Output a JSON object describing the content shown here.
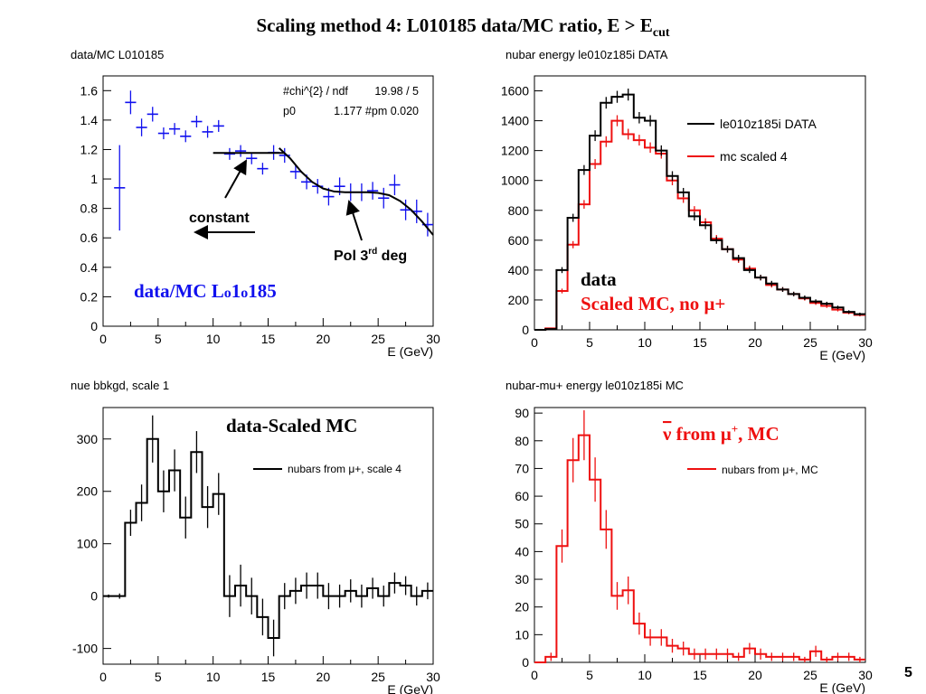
{
  "slide": {
    "title_main": "Scaling method 4: L010185 data/MC ratio, E > E",
    "title_sub": "cut",
    "page_number": "5"
  },
  "chart_data": [
    {
      "type": "scatter",
      "hist_title": "data/MC L010185",
      "xlabel": "E (GeV)",
      "ylabel": "",
      "xlim": [
        0,
        30
      ],
      "ylim": [
        0,
        1.7
      ],
      "xticks": [
        0,
        5,
        10,
        15,
        20,
        25,
        30
      ],
      "yticks": [
        0,
        0.2,
        0.4,
        0.6,
        0.8,
        1,
        1.2,
        1.4,
        1.6
      ],
      "stats": [
        {
          "name": "#chi^{2} / ndf",
          "value": "19.98 / 5"
        },
        {
          "name": "p0",
          "value": "1.177 #pm 0.020"
        }
      ],
      "series": [
        {
          "color": "#1010ee",
          "binwidth": 1,
          "x": [
            1.5,
            2.5,
            3.5,
            4.5,
            5.5,
            6.5,
            7.5,
            8.5,
            9.5,
            10.5,
            11.5,
            12.5,
            13.5,
            14.5,
            15.5,
            16.5,
            17.5,
            18.5,
            19.5,
            20.5,
            21.5,
            22.5,
            23.5,
            24.5,
            25.5,
            26.5,
            27.5,
            28.5,
            29.5
          ],
          "y": [
            0.94,
            1.52,
            1.35,
            1.44,
            1.31,
            1.34,
            1.29,
            1.39,
            1.32,
            1.36,
            1.17,
            1.19,
            1.14,
            1.07,
            1.18,
            1.16,
            1.05,
            0.98,
            0.95,
            0.88,
            0.95,
            0.91,
            0.91,
            0.92,
            0.87,
            0.96,
            0.79,
            0.78,
            0.69
          ],
          "err": [
            0.29,
            0.08,
            0.06,
            0.05,
            0.04,
            0.04,
            0.04,
            0.04,
            0.04,
            0.04,
            0.04,
            0.04,
            0.04,
            0.04,
            0.05,
            0.05,
            0.05,
            0.05,
            0.05,
            0.06,
            0.06,
            0.06,
            0.06,
            0.06,
            0.07,
            0.07,
            0.07,
            0.08,
            0.08
          ]
        }
      ],
      "fit_constant": {
        "x": [
          10,
          16.5
        ],
        "y": [
          1.177,
          1.177
        ]
      },
      "fit_poly": {
        "x": [
          16,
          17,
          18,
          19,
          20,
          21,
          22,
          23,
          24,
          25,
          26,
          27,
          28,
          29,
          30
        ],
        "y": [
          1.21,
          1.14,
          1.05,
          0.98,
          0.935,
          0.915,
          0.91,
          0.91,
          0.91,
          0.905,
          0.89,
          0.85,
          0.79,
          0.71,
          0.62
        ]
      },
      "annotations": {
        "constant": "constant",
        "pol_main": "Pol 3",
        "pol_sup": "rd",
        "pol_rest": " deg",
        "label": "data/MC L",
        "label_o": "o",
        "label_rest": "1",
        "label_o2": "o",
        "label_end": "185"
      }
    },
    {
      "type": "line",
      "hist_title": "nubar energy le010z185i DATA",
      "xlabel": "E (GeV)",
      "ylabel": "",
      "xlim": [
        0,
        30
      ],
      "ylim": [
        0,
        1700
      ],
      "xticks": [
        0,
        5,
        10,
        15,
        20,
        25,
        30
      ],
      "yticks": [
        0,
        200,
        400,
        600,
        800,
        1000,
        1200,
        1400,
        1600
      ],
      "legend": [
        {
          "name": "le010z185i DATA",
          "color": "#000000"
        },
        {
          "name": "mc scaled 4",
          "color": "#ee1010"
        }
      ],
      "series": [
        {
          "name": "le010z185i DATA",
          "color": "#000000",
          "binwidth": 1,
          "x": [
            0.5,
            1.5,
            2.5,
            3.5,
            4.5,
            5.5,
            6.5,
            7.5,
            8.5,
            9.5,
            10.5,
            11.5,
            12.5,
            13.5,
            14.5,
            15.5,
            16.5,
            17.5,
            18.5,
            19.5,
            20.5,
            21.5,
            22.5,
            23.5,
            24.5,
            25.5,
            26.5,
            27.5,
            28.5,
            29.5
          ],
          "y": [
            0,
            5,
            400,
            750,
            1070,
            1300,
            1520,
            1560,
            1575,
            1420,
            1400,
            1200,
            1030,
            920,
            760,
            700,
            600,
            540,
            480,
            400,
            350,
            310,
            270,
            240,
            215,
            190,
            175,
            150,
            120,
            105
          ],
          "err": [
            0,
            4,
            20,
            27,
            33,
            36,
            39,
            40,
            40,
            38,
            37,
            35,
            32,
            30,
            28,
            26,
            24,
            23,
            22,
            20,
            19,
            18,
            16,
            15,
            15,
            14,
            13,
            12,
            11,
            10
          ]
        },
        {
          "name": "mc scaled 4",
          "color": "#ee1010",
          "binwidth": 1,
          "x": [
            0.5,
            1.5,
            2.5,
            3.5,
            4.5,
            5.5,
            6.5,
            7.5,
            8.5,
            9.5,
            10.5,
            11.5,
            12.5,
            13.5,
            14.5,
            15.5,
            16.5,
            17.5,
            18.5,
            19.5,
            20.5,
            21.5,
            22.5,
            23.5,
            24.5,
            25.5,
            26.5,
            27.5,
            28.5,
            29.5
          ],
          "y": [
            0,
            10,
            260,
            570,
            840,
            1110,
            1260,
            1400,
            1310,
            1270,
            1220,
            1180,
            1000,
            880,
            800,
            720,
            610,
            540,
            470,
            410,
            350,
            300,
            270,
            240,
            210,
            180,
            160,
            135,
            115,
            100
          ],
          "err": [
            0,
            5,
            16,
            24,
            29,
            33,
            36,
            37,
            36,
            36,
            35,
            34,
            32,
            30,
            28,
            27,
            25,
            23,
            22,
            20,
            19,
            17,
            16,
            15,
            14,
            13,
            13,
            12,
            11,
            10
          ]
        }
      ],
      "annotations": {
        "data": "data",
        "scaled": "Scaled MC, no μ+"
      }
    },
    {
      "type": "line",
      "hist_title": "nue bbkgd, scale 1",
      "xlabel": "E (GeV)",
      "ylabel": "",
      "xlim": [
        0,
        30
      ],
      "ylim": [
        -130,
        360
      ],
      "xticks": [
        0,
        5,
        10,
        15,
        20,
        25,
        30
      ],
      "yticks": [
        -100,
        0,
        100,
        200,
        300
      ],
      "legend": [
        {
          "name": "nubars from μ+, scale 4",
          "color": "#000000"
        }
      ],
      "series": [
        {
          "name": "nubars from μ+, scale 4",
          "color": "#000000",
          "binwidth": 1,
          "x": [
            0.5,
            1.5,
            2.5,
            3.5,
            4.5,
            5.5,
            6.5,
            7.5,
            8.5,
            9.5,
            10.5,
            11.5,
            12.5,
            13.5,
            14.5,
            15.5,
            16.5,
            17.5,
            18.5,
            19.5,
            20.5,
            21.5,
            22.5,
            23.5,
            24.5,
            25.5,
            26.5,
            27.5,
            28.5,
            29.5
          ],
          "y": [
            0,
            0,
            140,
            178,
            300,
            200,
            240,
            150,
            275,
            170,
            195,
            0,
            20,
            0,
            -40,
            -80,
            0,
            10,
            20,
            20,
            0,
            0,
            10,
            0,
            15,
            0,
            25,
            20,
            0,
            10
          ],
          "err": [
            3,
            5,
            25,
            35,
            45,
            40,
            40,
            40,
            40,
            40,
            40,
            40,
            40,
            35,
            35,
            35,
            25,
            25,
            25,
            25,
            25,
            22,
            22,
            22,
            20,
            20,
            20,
            18,
            18,
            16
          ]
        }
      ],
      "annotations": {
        "label": "data-Scaled MC"
      }
    },
    {
      "type": "line",
      "hist_title": "nubar-mu+ energy le010z185i MC",
      "xlabel": "E (GeV)",
      "ylabel": "",
      "xlim": [
        0,
        30
      ],
      "ylim": [
        0,
        92
      ],
      "xticks": [
        0,
        5,
        10,
        15,
        20,
        25,
        30
      ],
      "yticks": [
        0,
        10,
        20,
        30,
        40,
        50,
        60,
        70,
        80,
        90
      ],
      "legend": [
        {
          "name": "nubars from μ+, MC",
          "color": "#ee1010"
        }
      ],
      "series": [
        {
          "name": "nubars from μ+, MC",
          "color": "#ee1010",
          "binwidth": 1,
          "x": [
            0.5,
            1.5,
            2.5,
            3.5,
            4.5,
            5.5,
            6.5,
            7.5,
            8.5,
            9.5,
            10.5,
            11.5,
            12.5,
            13.5,
            14.5,
            15.5,
            16.5,
            17.5,
            18.5,
            19.5,
            20.5,
            21.5,
            22.5,
            23.5,
            24.5,
            25.5,
            26.5,
            27.5,
            28.5,
            29.5
          ],
          "y": [
            0,
            2,
            42,
            73,
            82,
            66,
            48,
            24,
            26,
            14,
            9,
            9,
            6,
            5,
            3,
            3,
            3,
            3,
            2,
            5,
            3,
            2,
            2,
            2,
            1,
            4,
            1,
            2,
            2,
            1
          ],
          "err": [
            0,
            1.5,
            6,
            8,
            9,
            8,
            7,
            5,
            5,
            4,
            3,
            3,
            2.5,
            2.5,
            2,
            2,
            2,
            2,
            1.5,
            2,
            2,
            1.5,
            1.5,
            1.5,
            1,
            2,
            1,
            1.5,
            1.5,
            1
          ]
        }
      ],
      "annotations": {
        "label_nu": "ν",
        "label_rest": " from μ",
        "label_sup": "+",
        "label_end": ", MC"
      }
    }
  ]
}
